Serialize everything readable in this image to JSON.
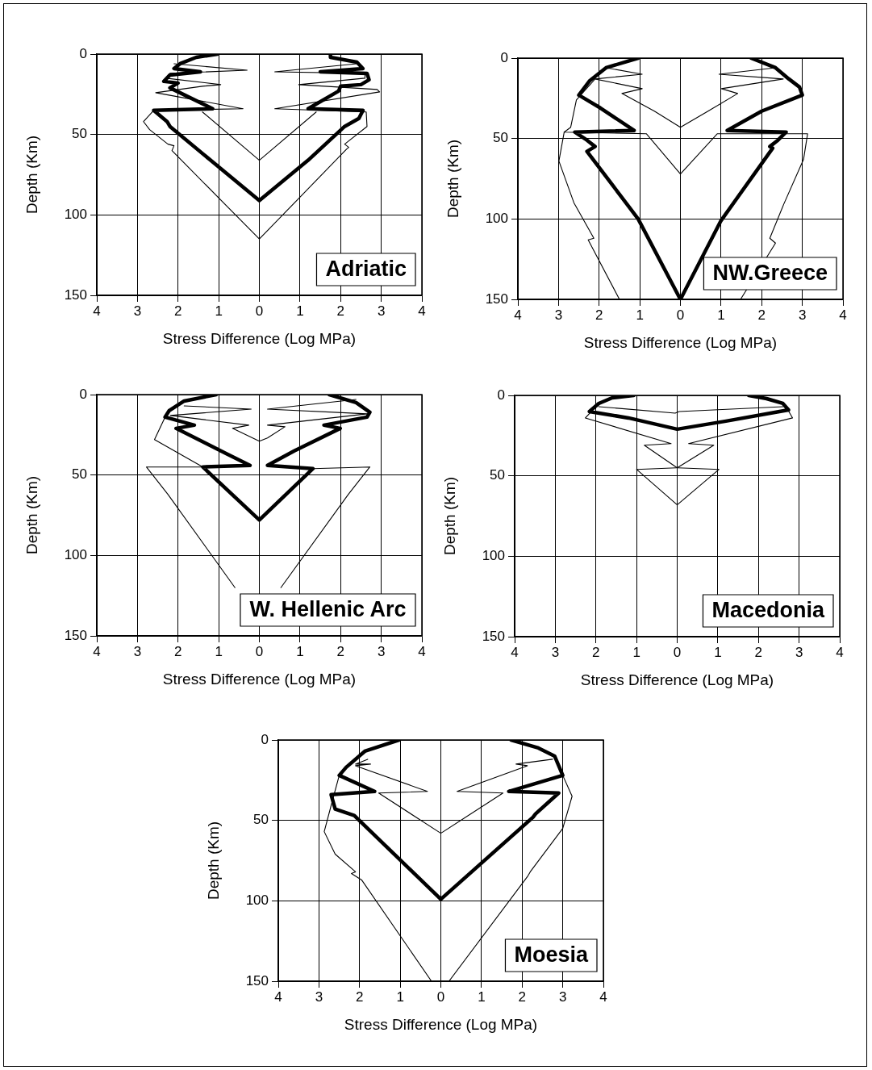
{
  "chart_data": [
    {
      "type": "line",
      "xlabel": "Stress Difference (Log MPa)",
      "ylabel": "Depth (Km)",
      "annotations": [
        "Adriatic"
      ],
      "xlim": [
        -4,
        4
      ],
      "xticks": [
        {
          "value": -4,
          "label": "4"
        },
        {
          "value": -3,
          "label": "3"
        },
        {
          "value": -2,
          "label": "2"
        },
        {
          "value": -1,
          "label": "1"
        },
        0,
        1,
        2,
        3,
        4
      ],
      "ylim": [
        150,
        0
      ],
      "yticks": [
        0,
        50,
        100,
        150
      ],
      "grid": true,
      "marker": "none",
      "series": [
        {
          "color": "#000000",
          "x": [
            -1.03,
            -1.55,
            -1.95,
            -2.1,
            -1.45,
            -2.2,
            -2.35,
            -2.0,
            -2.2,
            -1.15,
            -2.6,
            -2.27,
            -2.2,
            -1.2,
            0,
            1.2,
            2.1,
            2.45,
            2.55,
            1.2,
            1.95,
            2.0,
            2.5,
            2.7,
            2.65,
            1.5,
            2.55,
            2.4,
            1.75,
            1.75
          ],
          "values": [
            0,
            2,
            6,
            9,
            11,
            13,
            17,
            18,
            21,
            34,
            35,
            42,
            45,
            66,
            91,
            66,
            45,
            40,
            35,
            34,
            23,
            20,
            19,
            16,
            12,
            11,
            9,
            5,
            2,
            0
          ]
        },
        {
          "color": "#000000",
          "x": [
            -2.1,
            -0.3,
            -2.2,
            -2.3,
            -0.95,
            -1.4,
            -2.55,
            -0.4,
            -2.6,
            -2.85,
            -2.7,
            -2.25,
            -2.1,
            -2.15,
            0,
            2.15,
            2.2,
            2.1,
            2.65,
            2.63,
            0.38,
            2.96,
            2.9,
            0.97,
            2.6,
            2.6,
            0.38,
            2.4
          ],
          "values": [
            6,
            10,
            12,
            15,
            19,
            20,
            24,
            34,
            35,
            42,
            47,
            56,
            57,
            60,
            115,
            59,
            58,
            56,
            45,
            36,
            34,
            23.5,
            22,
            19,
            15,
            12,
            11,
            6
          ]
        },
        {
          "color": "#000000",
          "x": [
            -1.4,
            0,
            1.4
          ],
          "values": [
            36,
            66,
            36
          ]
        }
      ]
    },
    {
      "type": "line",
      "xlabel": "Stress Difference (Log MPa)",
      "ylabel": "Depth (Km)",
      "annotations": [
        "NW.Greece"
      ],
      "xlim": [
        -4,
        4
      ],
      "xticks": [
        {
          "value": -4,
          "label": "4"
        },
        {
          "value": -3,
          "label": "3"
        },
        {
          "value": -2,
          "label": "2"
        },
        {
          "value": -1,
          "label": "1"
        },
        0,
        1,
        2,
        3,
        4
      ],
      "ylim": [
        150,
        0
      ],
      "yticks": [
        0,
        50,
        100,
        150
      ],
      "grid": true,
      "marker": "none",
      "series": [
        {
          "color": "#000000",
          "x": [
            -1.04,
            -1.83,
            -2.23,
            -2.5,
            -1.97,
            -1.14,
            -2.6,
            -2.3,
            -2.1,
            -2.3,
            -1.04,
            0,
            1.0,
            2.27,
            2.2,
            2.4,
            2.6,
            1.15,
            2.0,
            3.0,
            2.93,
            2.67,
            2.34,
            1.74
          ],
          "values": [
            0,
            6,
            14,
            23,
            31,
            45,
            46,
            51,
            55,
            58,
            100,
            150,
            101,
            56,
            55,
            51,
            46,
            45,
            33,
            23,
            18,
            13,
            6,
            0
          ]
        },
        {
          "color": "#000000",
          "x": [
            -1.83,
            -0.94,
            -2.1,
            -0.94,
            -1.44,
            -0.64,
            0,
            0.68,
            1.41,
            1.01,
            2.53,
            0.95,
            2.34
          ],
          "values": [
            6,
            10,
            13,
            19,
            22,
            33,
            43,
            33,
            22,
            19,
            13,
            10,
            6
          ]
        },
        {
          "color": "#000000",
          "x": [
            -2.1,
            -2.56,
            -2.7,
            -2.86,
            -0.84,
            0,
            0.91,
            3.13,
            3.03,
            2.54,
            2.2,
            2.34,
            1.48
          ],
          "values": [
            13,
            26,
            43,
            46,
            47,
            72,
            47,
            47,
            63,
            91,
            112,
            115,
            150
          ]
        },
        {
          "color": "#000000",
          "x": [
            -2.86,
            -2.99,
            -2.62,
            -2.13,
            -2.27,
            -1.5
          ],
          "values": [
            46,
            64,
            90,
            112,
            113,
            150
          ]
        }
      ]
    },
    {
      "type": "line",
      "xlabel": "Stress Difference (Log MPa)",
      "ylabel": "Depth (Km)",
      "annotations": [
        "W. Hellenic Arc"
      ],
      "xlim": [
        -4,
        4
      ],
      "xticks": [
        {
          "value": -4,
          "label": "4"
        },
        {
          "value": -3,
          "label": "3"
        },
        {
          "value": -2,
          "label": "2"
        },
        {
          "value": -1,
          "label": "1"
        },
        0,
        1,
        2,
        3,
        4
      ],
      "ylim": [
        150,
        0
      ],
      "yticks": [
        0,
        50,
        100,
        150
      ],
      "grid": true,
      "marker": "none",
      "series": [
        {
          "color": "#000000",
          "x": [
            -1.06,
            -1.85,
            -2.22,
            -2.32,
            -1.6,
            -2.05,
            -0.79,
            -0.23,
            -1.39,
            0,
            1.32,
            0.2,
            0.86,
            1.99,
            1.59,
            2.65,
            2.72,
            2.38,
            1.72
          ],
          "values": [
            0,
            4,
            10,
            14,
            19,
            21,
            37,
            44,
            45,
            78,
            46,
            44,
            35,
            21,
            19,
            14,
            11,
            5,
            0
          ]
        },
        {
          "color": "#000000",
          "x": [
            -1.85,
            -0.2,
            -2.19,
            -0.26,
            -0.66,
            0,
            0.2,
            0.63,
            0.2,
            2.65,
            0.2,
            2.38
          ],
          "values": [
            7,
            9,
            13,
            19,
            21,
            29,
            27,
            20,
            19,
            12,
            9,
            3
          ]
        },
        {
          "color": "#000000",
          "x": [
            -2.32,
            -2.58,
            -1.39,
            -2.78,
            -2.25,
            -0.6,
            null,
            0.53,
            2.19,
            2.72,
            1.32
          ],
          "values": [
            14,
            28,
            45,
            45,
            62,
            120,
            null,
            120,
            62,
            45,
            46
          ]
        }
      ]
    },
    {
      "type": "line",
      "xlabel": "Stress Difference (Log MPa)",
      "ylabel": "Depth (Km)",
      "annotations": [
        "Macedonia"
      ],
      "xlim": [
        -4,
        4
      ],
      "xticks": [
        {
          "value": -4,
          "label": "4"
        },
        {
          "value": -3,
          "label": "3"
        },
        {
          "value": -2,
          "label": "2"
        },
        {
          "value": -1,
          "label": "1"
        },
        0,
        1,
        2,
        3,
        4
      ],
      "ylim": [
        150,
        0
      ],
      "yticks": [
        0,
        50,
        100,
        150
      ],
      "grid": true,
      "marker": "none",
      "series": [
        {
          "color": "#000000",
          "x": [
            -1.07,
            -1.6,
            -1.93,
            -2.16,
            -1.2,
            0,
            1.2,
            2.74,
            2.6,
            2.2,
            1.76
          ],
          "values": [
            0,
            1.5,
            5,
            10,
            14,
            21,
            16,
            9,
            5,
            2,
            0
          ]
        },
        {
          "color": "#000000",
          "x": [
            -1.93,
            -0.05,
            0.05,
            2.6
          ],
          "values": [
            7,
            11,
            10,
            7
          ]
        },
        {
          "color": "#000000",
          "x": [
            -2.0,
            -2.26,
            -0.15,
            -0.81,
            0,
            0.9,
            0.28,
            2.84,
            2.7
          ],
          "values": [
            7,
            14,
            30,
            31,
            45,
            31,
            30,
            14,
            8
          ]
        },
        {
          "color": "#000000",
          "x": [
            0.02,
            1.03,
            0,
            -1.0,
            -0.02
          ],
          "values": [
            45,
            46,
            68,
            46,
            45
          ]
        }
      ]
    },
    {
      "type": "line",
      "xlabel": "Stress Difference (Log MPa)",
      "ylabel": "Depth (Km)",
      "annotations": [
        "Moesia"
      ],
      "xlim": [
        -4,
        4
      ],
      "xticks": [
        {
          "value": -4,
          "label": "4"
        },
        {
          "value": -3,
          "label": "3"
        },
        {
          "value": -2,
          "label": "2"
        },
        {
          "value": -1,
          "label": "1"
        },
        0,
        1,
        2,
        3,
        4
      ],
      "ylim": [
        150,
        0
      ],
      "yticks": [
        0,
        50,
        100,
        150
      ],
      "grid": true,
      "marker": "none",
      "series": [
        {
          "color": "#000000",
          "x": [
            -1.03,
            -1.87,
            -2.33,
            -2.5,
            -1.63,
            -2.7,
            -2.6,
            -2.13,
            0,
            2.27,
            2.33,
            2.9,
            1.67,
            3.0,
            2.8,
            2.4,
            1.73
          ],
          "values": [
            0,
            7,
            17,
            22,
            32,
            34,
            43,
            47,
            99,
            48,
            46,
            33,
            32,
            22,
            10,
            5,
            0
          ]
        },
        {
          "color": "#000000",
          "x": [
            -1.8,
            -2.1,
            -1.73,
            -2.1,
            -0.33,
            -1.53,
            0,
            1.53,
            0.4,
            2.13,
            1.85,
            2.75
          ],
          "values": [
            12,
            15,
            15,
            16,
            32,
            33,
            58,
            33,
            32,
            16,
            15,
            12
          ]
        },
        {
          "color": "#000000",
          "x": [
            -2.5,
            -2.65,
            -2.87,
            -2.6,
            -2.1,
            -2.2,
            -1.95,
            -0.23,
            null,
            0.2,
            2.13,
            2.2,
            3.0,
            3.23,
            3.0
          ],
          "values": [
            22,
            36,
            57,
            71,
            82,
            83,
            87,
            150,
            null,
            150,
            85,
            82,
            55,
            35,
            22
          ]
        }
      ]
    }
  ]
}
